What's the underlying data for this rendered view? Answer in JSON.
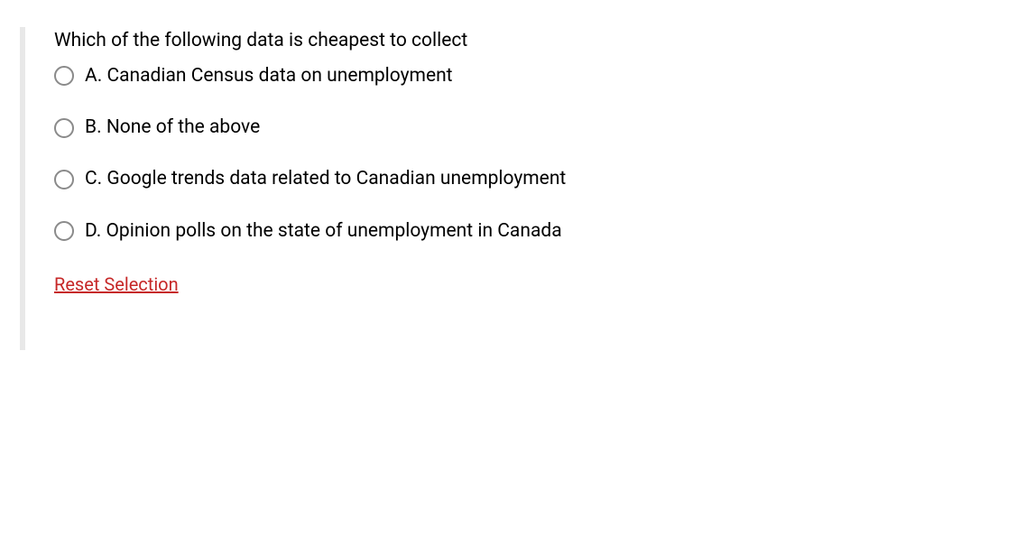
{
  "question": {
    "text": "Which of the following data is cheapest to collect",
    "options": [
      {
        "label": "A. Canadian Census data on unemployment"
      },
      {
        "label": "B. None of the above"
      },
      {
        "label": "C. Google trends data related to Canadian unemployment"
      },
      {
        "label": "D. Opinion polls on the state of unemployment in Canada"
      }
    ]
  },
  "actions": {
    "reset_label": "Reset Selection"
  },
  "styles": {
    "text_color": "#000000",
    "reset_link_color": "#c62828",
    "radio_border_color": "#8a8a8a",
    "left_bar_color": "#e8e8e8",
    "background_color": "#ffffff",
    "font_size": 21
  }
}
